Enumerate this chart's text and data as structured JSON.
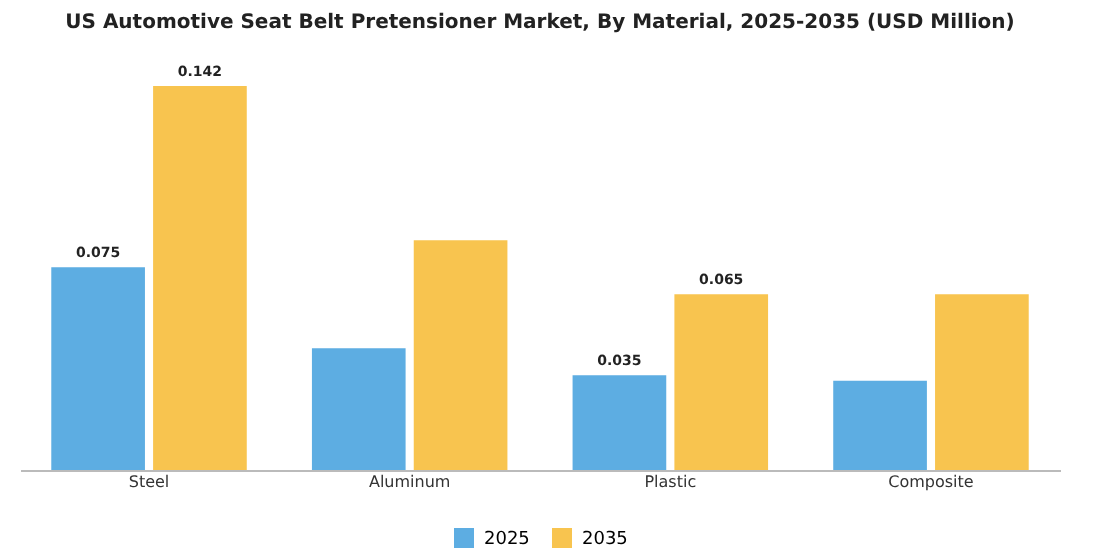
{
  "chart_data": {
    "type": "bar",
    "title": "US Automotive Seat Belt Pretensioner Market, By Material, 2025-2035 (USD Million)",
    "categories": [
      "Steel",
      "Aluminum",
      "Plastic",
      "Composite"
    ],
    "series": [
      {
        "name": "2025",
        "color": "#5dade2",
        "values": [
          0.075,
          0.045,
          0.035,
          0.033
        ],
        "value_labels": [
          "0.075",
          null,
          "0.035",
          null
        ]
      },
      {
        "name": "2035",
        "color": "#f8c44f",
        "values": [
          0.142,
          0.085,
          0.065,
          0.065
        ],
        "value_labels": [
          "0.142",
          null,
          "0.065",
          null
        ]
      }
    ],
    "legend": "bottom"
  }
}
